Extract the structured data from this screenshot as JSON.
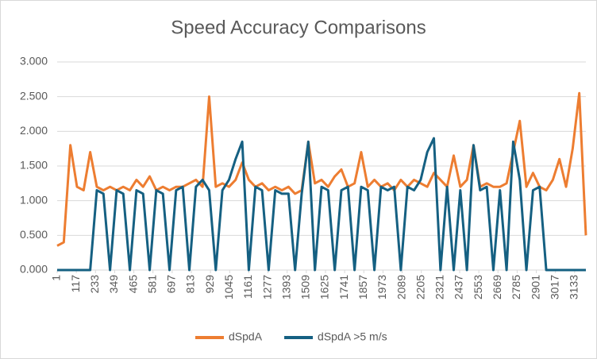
{
  "chart_data": {
    "type": "line",
    "title": "Speed Accuracy Comparisons",
    "x": [
      1,
      41,
      81,
      121,
      161,
      201,
      241,
      281,
      321,
      361,
      401,
      441,
      481,
      521,
      561,
      601,
      641,
      681,
      721,
      761,
      801,
      841,
      881,
      921,
      961,
      1001,
      1041,
      1081,
      1121,
      1161,
      1201,
      1241,
      1281,
      1321,
      1361,
      1401,
      1441,
      1481,
      1521,
      1561,
      1601,
      1641,
      1681,
      1721,
      1761,
      1801,
      1841,
      1881,
      1921,
      1961,
      2001,
      2041,
      2081,
      2121,
      2161,
      2201,
      2241,
      2281,
      2321,
      2361,
      2401,
      2441,
      2481,
      2521,
      2561,
      2601,
      2641,
      2681,
      2721,
      2761,
      2801,
      2841,
      2881,
      2921,
      2961,
      3001,
      3041,
      3081,
      3121,
      3161,
      3201
    ],
    "series": [
      {
        "name": "dSpdA",
        "color": "#ED7D31",
        "values": [
          0.35,
          0.4,
          1.8,
          1.2,
          1.15,
          1.7,
          1.2,
          1.15,
          1.2,
          1.15,
          1.2,
          1.15,
          1.3,
          1.2,
          1.35,
          1.15,
          1.2,
          1.15,
          1.2,
          1.2,
          1.25,
          1.3,
          1.2,
          2.5,
          1.2,
          1.25,
          1.2,
          1.3,
          1.55,
          1.3,
          1.2,
          1.25,
          1.15,
          1.2,
          1.15,
          1.2,
          1.1,
          1.15,
          1.85,
          1.25,
          1.3,
          1.2,
          1.35,
          1.45,
          1.2,
          1.25,
          1.7,
          1.2,
          1.3,
          1.2,
          1.25,
          1.15,
          1.3,
          1.2,
          1.3,
          1.25,
          1.2,
          1.4,
          1.3,
          1.2,
          1.65,
          1.2,
          1.3,
          1.8,
          1.2,
          1.25,
          1.2,
          1.2,
          1.25,
          1.7,
          2.15,
          1.2,
          1.4,
          1.2,
          1.15,
          1.3,
          1.6,
          1.2,
          1.75,
          2.55,
          0.5
        ]
      },
      {
        "name": "dSpdA >5 m/s",
        "color": "#156082",
        "values": [
          0,
          0,
          0,
          0,
          0,
          0,
          1.15,
          1.1,
          0,
          1.15,
          1.1,
          0,
          1.15,
          1.1,
          0,
          1.15,
          1.1,
          0,
          1.15,
          1.2,
          0,
          1.2,
          1.3,
          1.15,
          0,
          1.15,
          1.3,
          1.6,
          1.85,
          0,
          1.2,
          1.15,
          0,
          1.15,
          1.1,
          1.1,
          0,
          1.1,
          1.85,
          0,
          1.2,
          1.15,
          0,
          1.15,
          1.2,
          0,
          1.2,
          1.15,
          0,
          1.2,
          1.15,
          1.2,
          0,
          1.2,
          1.15,
          1.3,
          1.7,
          1.9,
          0,
          1.2,
          0,
          1.15,
          0,
          1.8,
          1.15,
          1.2,
          0,
          1.15,
          0,
          1.85,
          1.3,
          0,
          1.15,
          1.2,
          0,
          0,
          0,
          0,
          0,
          0,
          0
        ]
      }
    ],
    "xlim": [
      1,
      3201
    ],
    "xticks": [
      1,
      117,
      233,
      349,
      465,
      581,
      697,
      813,
      929,
      1045,
      1161,
      1277,
      1393,
      1509,
      1625,
      1741,
      1857,
      1973,
      2089,
      2205,
      2321,
      2437,
      2553,
      2669,
      2785,
      2901,
      3017,
      3133
    ],
    "ylim": [
      0,
      3
    ],
    "yticks": [
      {
        "value": 0,
        "label": "0.000"
      },
      {
        "value": 0.5,
        "label": "0.500"
      },
      {
        "value": 1,
        "label": "1.000"
      },
      {
        "value": 1.5,
        "label": "1.500"
      },
      {
        "value": 2,
        "label": "2.000"
      },
      {
        "value": 2.5,
        "label": "2.500"
      },
      {
        "value": 3,
        "label": "3.000"
      }
    ],
    "grid": true,
    "legend": "bottom"
  }
}
